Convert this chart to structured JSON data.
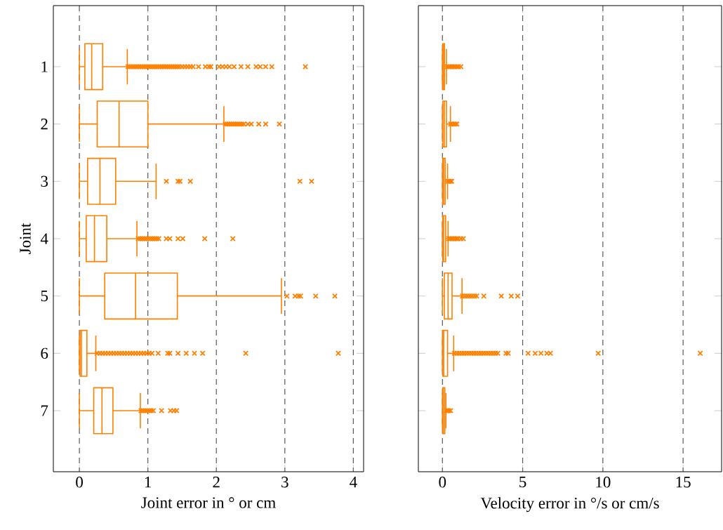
{
  "chart_data": [
    {
      "type": "box",
      "categories": [
        "1",
        "2",
        "3",
        "4",
        "5",
        "6",
        "7"
      ],
      "xlabel": "Joint error in ° or cm",
      "ylabel": "Joint",
      "orientation": "horizontal",
      "xlim": [
        -0.38,
        4.15
      ],
      "xticks": [
        0,
        1,
        2,
        3,
        4
      ],
      "grid": "x",
      "marker": "cross",
      "series": [
        {
          "color": "#ff8000",
          "boxes": [
            {
              "low": 0,
              "q1": 0.08,
              "median": 0.18,
              "q3": 0.34,
              "high": 0.7,
              "outliers": [
                0.71,
                0.74,
                0.77,
                0.8,
                0.83,
                0.86,
                0.89,
                0.92,
                0.95,
                0.98,
                1.01,
                1.04,
                1.07,
                1.1,
                1.13,
                1.16,
                1.19,
                1.22,
                1.25,
                1.28,
                1.31,
                1.34,
                1.37,
                1.4,
                1.43,
                1.46,
                1.5,
                1.54,
                1.58,
                1.62,
                1.66,
                1.74,
                1.84,
                1.89,
                1.92,
                2.04,
                2.09,
                2.14,
                2.19,
                2.26,
                2.36,
                2.46,
                2.58,
                2.64,
                2.72,
                2.81,
                3.3
              ]
            },
            {
              "low": 0,
              "q1": 0.26,
              "median": 0.58,
              "q3": 1.0,
              "high": 2.11,
              "outliers": [
                2.13,
                2.16,
                2.19,
                2.22,
                2.25,
                2.28,
                2.31,
                2.34,
                2.37,
                2.4,
                2.46,
                2.51,
                2.62,
                2.72,
                2.92
              ]
            },
            {
              "low": 0,
              "q1": 0.12,
              "median": 0.3,
              "q3": 0.53,
              "high": 1.12,
              "outliers": [
                1.27,
                1.44,
                1.47,
                1.62,
                3.22,
                3.39
              ]
            },
            {
              "low": 0,
              "q1": 0.1,
              "median": 0.22,
              "q3": 0.4,
              "high": 0.84,
              "outliers": [
                0.86,
                0.89,
                0.92,
                0.95,
                0.98,
                1.01,
                1.04,
                1.07,
                1.1,
                1.13,
                1.16,
                1.27,
                1.32,
                1.44,
                1.51,
                1.83,
                2.24
              ]
            },
            {
              "low": 0,
              "q1": 0.37,
              "median": 0.82,
              "q3": 1.43,
              "high": 2.95,
              "outliers": [
                3.03,
                3.15,
                3.2,
                3.23,
                3.45,
                3.73
              ]
            },
            {
              "low": 0,
              "q1": 0.01,
              "median": 0.03,
              "q3": 0.11,
              "high": 0.24,
              "outliers": [
                0.26,
                0.3,
                0.34,
                0.38,
                0.42,
                0.46,
                0.5,
                0.54,
                0.58,
                0.62,
                0.66,
                0.7,
                0.74,
                0.78,
                0.82,
                0.86,
                0.9,
                0.94,
                0.98,
                1.02,
                1.06,
                1.15,
                1.29,
                1.32,
                1.44,
                1.56,
                1.68,
                1.8,
                2.43,
                3.78
              ]
            },
            {
              "low": 0,
              "q1": 0.21,
              "median": 0.33,
              "q3": 0.49,
              "high": 0.89,
              "outliers": [
                0.9,
                0.93,
                0.96,
                0.99,
                1.02,
                1.05,
                1.08,
                1.2,
                1.33,
                1.38,
                1.42
              ]
            }
          ]
        }
      ]
    },
    {
      "type": "box",
      "categories": [
        "1",
        "2",
        "3",
        "4",
        "5",
        "6",
        "7"
      ],
      "xlabel": "Velocity error in °/s or cm/s",
      "orientation": "horizontal",
      "xlim": [
        -1.5,
        17.4
      ],
      "xticks": [
        0,
        5,
        10,
        15
      ],
      "grid": "x",
      "marker": "cross",
      "tick_labels": "x",
      "series": [
        {
          "color": "#ff8000",
          "boxes": [
            {
              "low": 0,
              "q1": 0.02,
              "median": 0.06,
              "q3": 0.13,
              "high": 0.25,
              "outliers": [
                0.3,
                0.4,
                0.5,
                0.6,
                0.7,
                0.8,
                0.9,
                1.0,
                1.15
              ]
            },
            {
              "low": 0,
              "q1": 0.03,
              "median": 0.12,
              "q3": 0.25,
              "high": 0.5,
              "outliers": [
                0.52,
                0.6,
                0.7,
                0.8,
                0.9
              ]
            },
            {
              "low": 0,
              "q1": 0.02,
              "median": 0.08,
              "q3": 0.17,
              "high": 0.32,
              "outliers": [
                0.35,
                0.42,
                0.5,
                0.58
              ]
            },
            {
              "low": 0,
              "q1": 0.02,
              "median": 0.08,
              "q3": 0.2,
              "high": 0.35,
              "outliers": [
                0.4,
                0.5,
                0.6,
                0.7,
                0.8,
                0.9,
                0.97,
                1.15,
                1.3
              ]
            },
            {
              "low": 0,
              "q1": 0.12,
              "median": 0.35,
              "q3": 0.6,
              "high": 1.22,
              "outliers": [
                1.25,
                1.4,
                1.55,
                1.7,
                1.85,
                2.0,
                2.14,
                2.58,
                3.67,
                4.29,
                4.69
              ]
            },
            {
              "low": 0,
              "q1": 0.02,
              "median": 0.08,
              "q3": 0.32,
              "high": 0.7,
              "outliers": [
                0.75,
                0.9,
                1.05,
                1.2,
                1.35,
                1.5,
                1.65,
                1.8,
                1.95,
                2.1,
                2.25,
                2.4,
                2.55,
                2.7,
                2.85,
                3.0,
                3.15,
                3.3,
                3.45,
                3.96,
                4.1,
                5.34,
                5.78,
                6.14,
                6.51,
                6.73,
                9.71,
                16.07
              ]
            },
            {
              "low": 0,
              "q1": 0.02,
              "median": 0.06,
              "q3": 0.15,
              "high": 0.22,
              "outliers": [
                0.26,
                0.32,
                0.4,
                0.51
              ]
            }
          ]
        }
      ]
    }
  ]
}
